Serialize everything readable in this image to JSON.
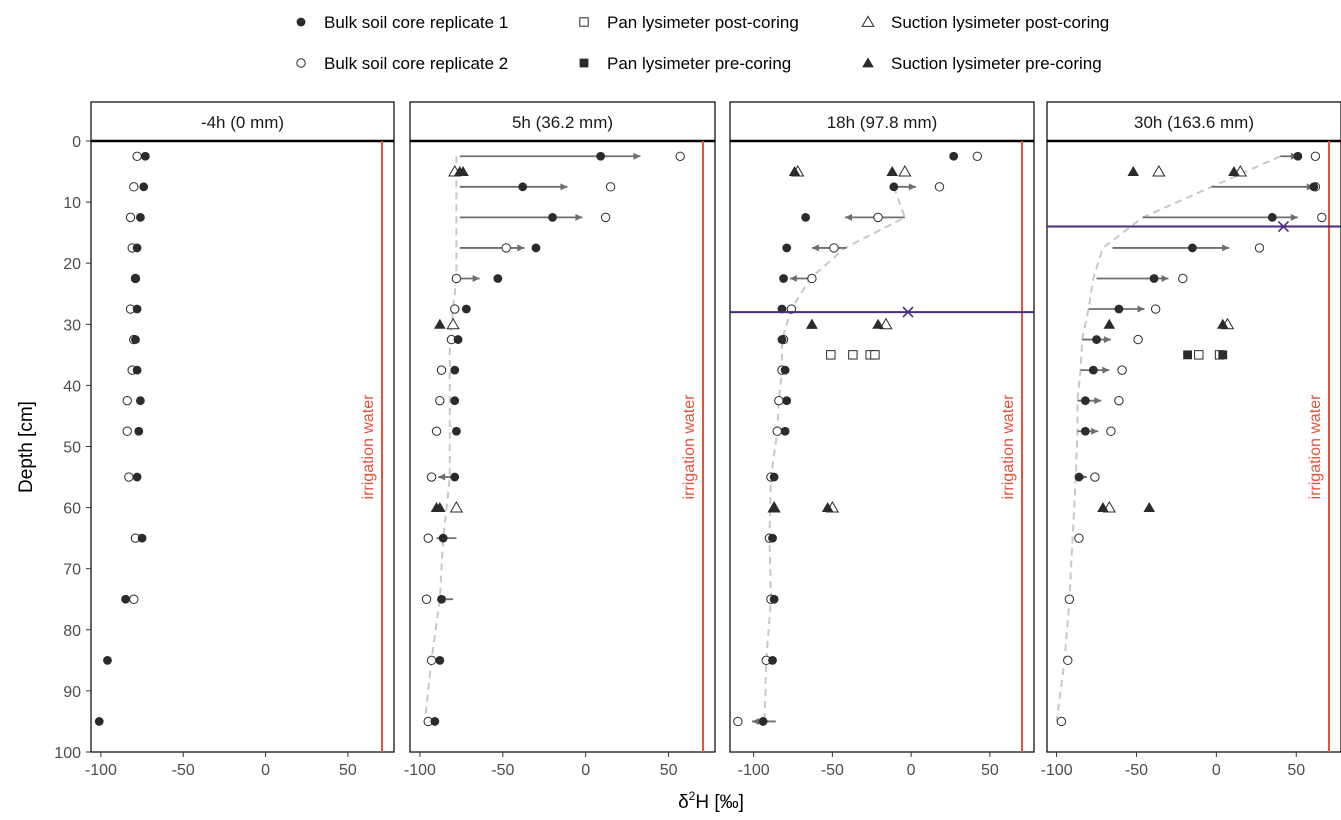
{
  "legend": {
    "items": [
      {
        "label": "Bulk soil core replicate 1",
        "symbol": "circle-filled"
      },
      {
        "label": "Pan lysimeter post-coring",
        "symbol": "square-open"
      },
      {
        "label": "Suction lysimeter post-coring",
        "symbol": "triangle-open"
      },
      {
        "label": "Bulk soil core replicate 2",
        "symbol": "circle-open"
      },
      {
        "label": "Pan lysimeter pre-coring",
        "symbol": "square-filled"
      },
      {
        "label": "Suction lysimeter pre-coring",
        "symbol": "triangle-filled"
      }
    ]
  },
  "colors": {
    "irrigation": "#e5533c",
    "wetting_front": "#4b2a82",
    "points": "#2b2b2b",
    "arrows": "#6e6e6e",
    "dashed": "#c8c8c8",
    "axis_text": "#4d4d4d"
  },
  "chart_data": {
    "type": "scatter",
    "ylabel": "Depth [cm]",
    "xlabel": "δ²H [‰]",
    "ylim": [
      0,
      100
    ],
    "y_reversed": true,
    "yticks": [
      0,
      10,
      20,
      30,
      40,
      50,
      60,
      70,
      80,
      90,
      100
    ],
    "xticks": [
      -100,
      -50,
      0,
      50
    ],
    "grid": false,
    "legend_position": "top",
    "irrigation_label": "irrigation water",
    "panels": [
      {
        "title": "-4h (0 mm)",
        "xlim": [
          -106,
          78
        ],
        "irrigation_x": 78,
        "rep1": [
          [
            -73,
            2.5
          ],
          [
            -74,
            7.5
          ],
          [
            -76,
            12.5
          ],
          [
            -78,
            17.5
          ],
          [
            -79,
            22.5
          ],
          [
            -78,
            27.5
          ],
          [
            -79,
            32.5
          ],
          [
            -78,
            37.5
          ],
          [
            -76,
            42.5
          ],
          [
            -77,
            47.5
          ],
          [
            -78,
            55
          ],
          [
            -75,
            65
          ],
          [
            -85,
            75
          ],
          [
            -96,
            85
          ],
          [
            -101,
            95
          ]
        ],
        "rep2": [
          [
            -78,
            2.5
          ],
          [
            -80,
            7.5
          ],
          [
            -82,
            12.5
          ],
          [
            -81,
            17.5
          ],
          [
            -79,
            22.5
          ],
          [
            -82,
            27.5
          ],
          [
            -80,
            32.5
          ],
          [
            -81,
            37.5
          ],
          [
            -84,
            42.5
          ],
          [
            -84,
            47.5
          ],
          [
            -83,
            55
          ],
          [
            -79,
            65
          ],
          [
            -80,
            75
          ]
        ],
        "pan_post": [],
        "pan_pre": [],
        "suc_post": [],
        "suc_pre": [],
        "arrows": [],
        "front": [],
        "wetting_front": null
      },
      {
        "title": "5h (36.2 mm)",
        "xlim": [
          -106,
          78
        ],
        "irrigation_x": 78,
        "rep1": [
          [
            9,
            2.5
          ],
          [
            -38,
            7.5
          ],
          [
            -20,
            12.5
          ],
          [
            -30,
            17.5
          ],
          [
            -53,
            22.5
          ],
          [
            -72,
            27.5
          ],
          [
            -77,
            32.5
          ],
          [
            -79,
            37.5
          ],
          [
            -79,
            42.5
          ],
          [
            -78,
            47.5
          ],
          [
            -79,
            55
          ],
          [
            -86,
            65
          ],
          [
            -87,
            75
          ],
          [
            -88,
            85
          ],
          [
            -91,
            95
          ]
        ],
        "rep2": [
          [
            57,
            2.5
          ],
          [
            15,
            7.5
          ],
          [
            12,
            12.5
          ],
          [
            -48,
            17.5
          ],
          [
            -78,
            22.5
          ],
          [
            -79,
            27.5
          ],
          [
            -81,
            32.5
          ],
          [
            -87,
            37.5
          ],
          [
            -88,
            42.5
          ],
          [
            -90,
            47.5
          ],
          [
            -93,
            55
          ],
          [
            -95,
            65
          ],
          [
            -96,
            75
          ],
          [
            -93,
            85
          ],
          [
            -95,
            95
          ]
        ],
        "pan_post": [],
        "pan_pre": [],
        "suc_post": [
          [
            -79,
            5
          ],
          [
            -80,
            30
          ],
          [
            -78,
            60
          ]
        ],
        "suc_pre": [
          [
            -74,
            5
          ],
          [
            -76,
            5
          ],
          [
            -88,
            30
          ],
          [
            -90,
            60
          ],
          [
            -88,
            60
          ]
        ],
        "arrows": [
          [
            [
              -76,
              2.5
            ],
            [
              33,
              2.5
            ]
          ],
          [
            [
              -76,
              7.5
            ],
            [
              -11,
              7.5
            ]
          ],
          [
            [
              -76,
              12.5
            ],
            [
              -2,
              12.5
            ]
          ],
          [
            [
              -76,
              17.5
            ],
            [
              -37,
              17.5
            ]
          ],
          [
            [
              -78,
              22.5
            ],
            [
              -64,
              22.5
            ]
          ],
          [
            [
              -80,
              55
            ],
            [
              -89,
              55
            ]
          ],
          [
            [
              -78,
              65
            ],
            [
              -90,
              65
            ]
          ],
          [
            [
              -80,
              75
            ],
            [
              -89,
              75
            ]
          ]
        ],
        "front": [
          [
            -78,
            2.5
          ],
          [
            -78,
            7.5
          ],
          [
            -78,
            12.5
          ],
          [
            -78,
            17.5
          ],
          [
            -78,
            22.5
          ],
          [
            -80,
            27.5
          ],
          [
            -82,
            32.5
          ],
          [
            -82,
            37.5
          ],
          [
            -82,
            42.5
          ],
          [
            -82,
            47.5
          ],
          [
            -82,
            55
          ],
          [
            -86,
            65
          ],
          [
            -88,
            75
          ],
          [
            -93,
            85
          ],
          [
            -97,
            95
          ]
        ],
        "wetting_front": null
      },
      {
        "title": "18h (97.8 mm)",
        "xlim": [
          -115,
          78
        ],
        "irrigation_x": 78,
        "rep1": [
          [
            27,
            2.5
          ],
          [
            -11,
            7.5
          ],
          [
            -67,
            12.5
          ],
          [
            -79,
            17.5
          ],
          [
            -81,
            22.5
          ],
          [
            -82,
            27.5
          ],
          [
            -82,
            32.5
          ],
          [
            -80,
            37.5
          ],
          [
            -79,
            42.5
          ],
          [
            -80,
            47.5
          ],
          [
            -87,
            55
          ],
          [
            -88,
            65
          ],
          [
            -87,
            75
          ],
          [
            -88,
            85
          ],
          [
            -94,
            95
          ]
        ],
        "rep2": [
          [
            42,
            2.5
          ],
          [
            18,
            7.5
          ],
          [
            -21,
            12.5
          ],
          [
            -49,
            17.5
          ],
          [
            -63,
            22.5
          ],
          [
            -76,
            27.5
          ],
          [
            -81,
            32.5
          ],
          [
            -82,
            37.5
          ],
          [
            -84,
            42.5
          ],
          [
            -85,
            47.5
          ],
          [
            -89,
            55
          ],
          [
            -90,
            65
          ],
          [
            -89,
            75
          ],
          [
            -92,
            85
          ],
          [
            -110,
            95
          ]
        ],
        "pan_post": [
          [
            -51,
            35
          ],
          [
            -37,
            35
          ],
          [
            -26,
            35
          ],
          [
            -23,
            35
          ]
        ],
        "pan_pre": [],
        "suc_post": [
          [
            -72,
            5
          ],
          [
            -4,
            5
          ],
          [
            -16,
            30
          ],
          [
            -50,
            60
          ],
          [
            -87,
            60
          ]
        ],
        "suc_pre": [
          [
            -74,
            5
          ],
          [
            -12,
            5
          ],
          [
            -63,
            30
          ],
          [
            -63,
            30
          ],
          [
            -21,
            30
          ],
          [
            -53,
            60
          ],
          [
            -87,
            60
          ]
        ],
        "arrows": [
          [
            [
              -11,
              7.5
            ],
            [
              3,
              7.5
            ]
          ],
          [
            [
              -4,
              12.5
            ],
            [
              -42,
              12.5
            ]
          ],
          [
            [
              -41,
              17.5
            ],
            [
              -63,
              17.5
            ]
          ],
          [
            [
              -65,
              22.5
            ],
            [
              -77,
              22.5
            ]
          ],
          [
            [
              -86,
              95
            ],
            [
              -101,
              95
            ]
          ]
        ],
        "front": [
          [
            -11,
            7.5
          ],
          [
            -4,
            12.5
          ],
          [
            -42,
            17.5
          ],
          [
            -64,
            22.5
          ],
          [
            -76,
            27.5
          ],
          [
            -82,
            32.5
          ],
          [
            -82,
            37.5
          ],
          [
            -84,
            42.5
          ],
          [
            -85,
            47.5
          ],
          [
            -89,
            55
          ],
          [
            -90,
            65
          ],
          [
            -89,
            75
          ],
          [
            -92,
            85
          ],
          [
            -93,
            95
          ]
        ],
        "wetting_front": {
          "depth": 28,
          "x": -2
        }
      },
      {
        "title": "30h (163.6 mm)",
        "xlim": [
          -106,
          78
        ],
        "irrigation_x": 78,
        "rep1": [
          [
            51,
            2.5
          ],
          [
            61,
            7.5
          ],
          [
            35,
            12.5
          ],
          [
            -15,
            17.5
          ],
          [
            -39,
            22.5
          ],
          [
            -61,
            27.5
          ],
          [
            -75,
            32.5
          ],
          [
            -77,
            37.5
          ],
          [
            -82,
            42.5
          ],
          [
            -82,
            47.5
          ],
          [
            -86,
            55
          ]
        ],
        "rep2": [
          [
            62,
            2.5
          ],
          [
            62,
            7.5
          ],
          [
            66,
            12.5
          ],
          [
            27,
            17.5
          ],
          [
            -21,
            22.5
          ],
          [
            -38,
            27.5
          ],
          [
            -49,
            32.5
          ],
          [
            -59,
            37.5
          ],
          [
            -61,
            42.5
          ],
          [
            -66,
            47.5
          ],
          [
            -76,
            55
          ],
          [
            -86,
            65
          ],
          [
            -92,
            75
          ],
          [
            -93,
            85
          ],
          [
            -97,
            95
          ]
        ],
        "pan_post": [
          [
            -11,
            35
          ],
          [
            2,
            35
          ]
        ],
        "pan_pre": [
          [
            -18,
            35
          ],
          [
            4,
            35
          ]
        ],
        "suc_post": [
          [
            -36,
            5
          ],
          [
            15,
            5
          ],
          [
            7,
            30
          ],
          [
            -67,
            60
          ]
        ],
        "suc_pre": [
          [
            -52,
            5
          ],
          [
            11,
            5
          ],
          [
            -67,
            30
          ],
          [
            4,
            30
          ],
          [
            -71,
            60
          ],
          [
            -42,
            60
          ]
        ],
        "arrows": [
          [
            [
              40,
              2.5
            ],
            [
              51,
              2.5
            ]
          ],
          [
            [
              -3,
              7.5
            ],
            [
              61,
              7.5
            ]
          ],
          [
            [
              -46,
              12.5
            ],
            [
              51,
              12.5
            ]
          ],
          [
            [
              -65,
              17.5
            ],
            [
              8,
              17.5
            ]
          ],
          [
            [
              -75,
              22.5
            ],
            [
              -30,
              22.5
            ]
          ],
          [
            [
              -80,
              27.5
            ],
            [
              -45,
              27.5
            ]
          ],
          [
            [
              -84,
              32.5
            ],
            [
              -66,
              32.5
            ]
          ],
          [
            [
              -85,
              37.5
            ],
            [
              -67,
              37.5
            ]
          ],
          [
            [
              -87,
              42.5
            ],
            [
              -72,
              42.5
            ]
          ],
          [
            [
              -87,
              47.5
            ],
            [
              -74,
              47.5
            ]
          ],
          [
            [
              -88,
              55
            ],
            [
              -81,
              55
            ]
          ]
        ],
        "front": [
          [
            40,
            2.5
          ],
          [
            -3,
            7.5
          ],
          [
            -46,
            12.5
          ],
          [
            -71,
            17.5
          ],
          [
            -77,
            22.5
          ],
          [
            -80,
            27.5
          ],
          [
            -84,
            32.5
          ],
          [
            -85,
            37.5
          ],
          [
            -87,
            42.5
          ],
          [
            -87,
            47.5
          ],
          [
            -88,
            55
          ],
          [
            -90,
            65
          ],
          [
            -92,
            75
          ],
          [
            -95,
            85
          ],
          [
            -100,
            95
          ]
        ],
        "wetting_front": {
          "depth": 14,
          "x": 42
        }
      }
    ]
  }
}
